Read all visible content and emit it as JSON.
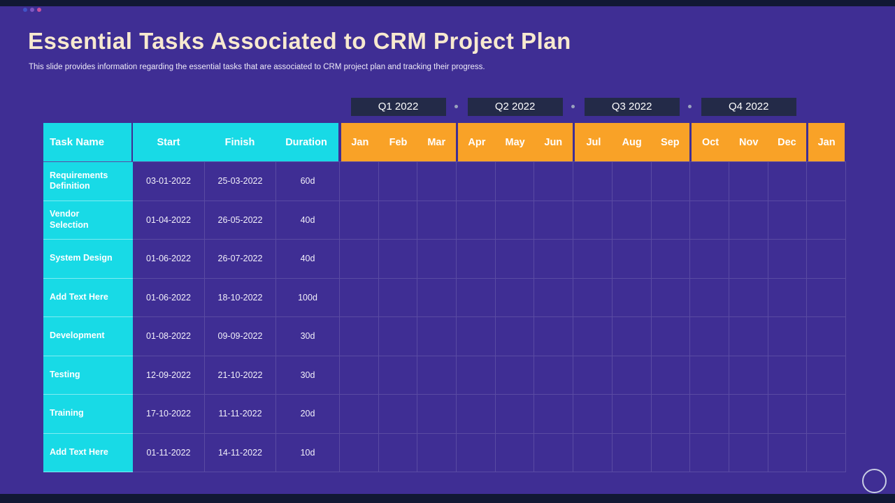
{
  "chrome": {
    "window_dots": [
      "#4153C6",
      "#7E57C2",
      "#C8529E"
    ]
  },
  "slide": {
    "title": "Essential Tasks Associated to CRM Project Plan",
    "subtitle": "This slide provides information regarding the essential tasks that are associated to CRM project plan and tracking their progress."
  },
  "quarters": [
    {
      "label": "Q1 2022"
    },
    {
      "label": "Q2 2022"
    },
    {
      "label": "Q3 2022"
    },
    {
      "label": "Q4 2022"
    }
  ],
  "gantt": {
    "headers": {
      "task": "Task Name",
      "start": "Start",
      "finish": "Finish",
      "duration": "Duration"
    },
    "month_groups": [
      [
        "Jan",
        "Feb",
        "Mar"
      ],
      [
        "Apr",
        "May",
        "Jun"
      ],
      [
        "Jul",
        "Aug",
        "Sep"
      ],
      [
        "Oct",
        "Nov",
        "Dec"
      ],
      [
        "Jan"
      ]
    ],
    "rows": [
      {
        "task": "Requirements Definition",
        "start": "03-01-2022",
        "finish": "25-03-2022",
        "duration": "60d"
      },
      {
        "task": "Vendor Selection",
        "start": "01-04-2022",
        "finish": "26-05-2022",
        "duration": "40d"
      },
      {
        "task": "System Design",
        "start": "01-06-2022",
        "finish": "26-07-2022",
        "duration": "40d"
      },
      {
        "task": "Add Text Here",
        "start": "01-06-2022",
        "finish": "18-10-2022",
        "duration": "100d"
      },
      {
        "task": "Development",
        "start": "01-08-2022",
        "finish": "09-09-2022",
        "duration": "30d"
      },
      {
        "task": "Testing",
        "start": "12-09-2022",
        "finish": "21-10-2022",
        "duration": "30d"
      },
      {
        "task": "Training",
        "start": "17-10-2022",
        "finish": "11-11-2022",
        "duration": "20d"
      },
      {
        "task": "Add Text Here",
        "start": "01-11-2022",
        "finish": "14-11-2022",
        "duration": "10d"
      }
    ]
  },
  "colors": {
    "bg": "#3F2E94",
    "strip": "#111834",
    "cyan": "#18DAE6",
    "orange": "#F9A227",
    "title": "#F7E9CF",
    "quarter": "#232A48"
  }
}
